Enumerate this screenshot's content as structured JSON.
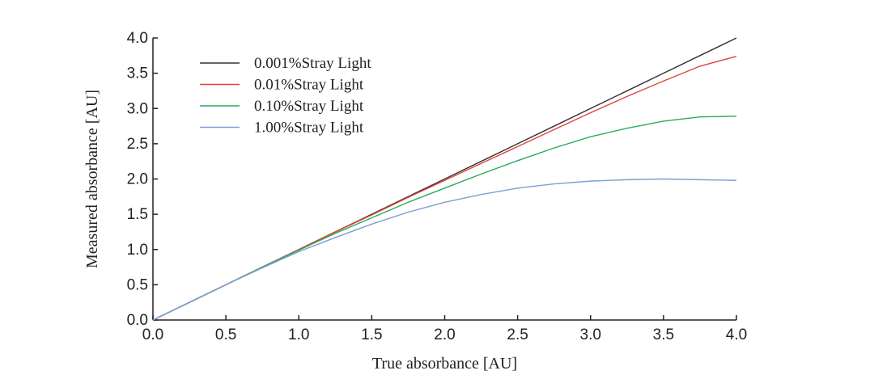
{
  "chart_data": {
    "type": "line",
    "xlabel": "True  absorbance [AU]",
    "ylabel": "Measured absorbance [AU]",
    "xlim": [
      0,
      4
    ],
    "ylim": [
      0,
      4
    ],
    "xticks": [
      "0.0",
      "0.5",
      "1.0",
      "1.5",
      "2.0",
      "2.5",
      "3.0",
      "3.5",
      "4.0"
    ],
    "yticks": [
      "0.0",
      "0.5",
      "1.0",
      "1.5",
      "2.0",
      "2.5",
      "3.0",
      "3.5",
      "4.0"
    ],
    "grid": false,
    "legend_position": "top-left",
    "x": [
      0,
      0.25,
      0.5,
      0.75,
      1.0,
      1.25,
      1.5,
      1.75,
      2.0,
      2.25,
      2.5,
      2.75,
      3.0,
      3.25,
      3.5,
      3.75,
      4.0
    ],
    "series": [
      {
        "name": "0.001%Stray Light",
        "color": "#333333",
        "values": [
          0,
          0.25,
          0.5,
          0.75,
          1.0,
          1.25,
          1.5,
          1.75,
          2.0,
          2.25,
          2.5,
          2.75,
          3.0,
          3.25,
          3.5,
          3.75,
          4.0
        ]
      },
      {
        "name": "0.01%Stray Light",
        "color": "#e0453a",
        "values": [
          0,
          0.25,
          0.5,
          0.75,
          1.0,
          1.25,
          1.49,
          1.74,
          1.98,
          2.22,
          2.46,
          2.7,
          2.94,
          3.17,
          3.39,
          3.6,
          3.74
        ]
      },
      {
        "name": "0.10%Stray Light",
        "color": "#2aab5a",
        "values": [
          0,
          0.25,
          0.5,
          0.75,
          0.99,
          1.23,
          1.45,
          1.67,
          1.87,
          2.07,
          2.26,
          2.44,
          2.6,
          2.72,
          2.82,
          2.88,
          2.89
        ]
      },
      {
        "name": "1.00%Stray Light",
        "color": "#7b9fd6",
        "values": [
          0,
          0.25,
          0.5,
          0.74,
          0.97,
          1.17,
          1.36,
          1.53,
          1.67,
          1.78,
          1.87,
          1.93,
          1.97,
          1.99,
          2.0,
          1.99,
          1.98
        ]
      }
    ]
  }
}
